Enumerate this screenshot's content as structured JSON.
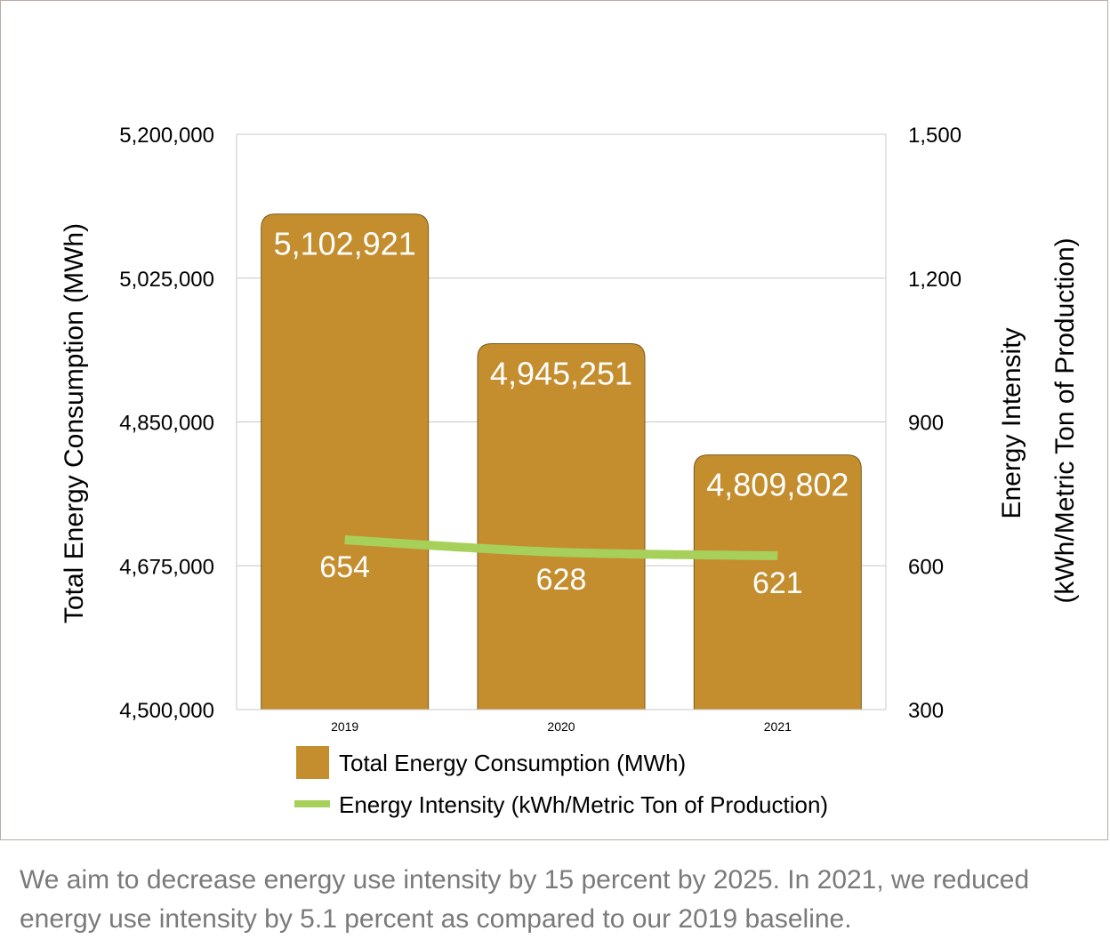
{
  "chart_data": {
    "type": "bar",
    "categories": [
      "2019",
      "2020",
      "2021"
    ],
    "series": [
      {
        "name": "Total Energy Consumption (MWh)",
        "type": "bar",
        "axis": "left",
        "values": [
          5102921,
          4945251,
          4809802
        ],
        "labels": [
          "5,102,921",
          "4,945,251",
          "4,809,802"
        ],
        "color": "#c48e2f"
      },
      {
        "name": "Energy Intensity (kWh/Metric Ton of Production)",
        "type": "line",
        "axis": "right",
        "values": [
          654,
          628,
          621
        ],
        "labels": [
          "654",
          "628",
          "621"
        ],
        "color": "#a6d05a"
      }
    ],
    "ylabel": "Total Energy Consumption (MWh)",
    "ylim": [
      4500000,
      5200000
    ],
    "yticks": [
      "4,500,000",
      "4,675,000",
      "4,850,000",
      "5,025,000",
      "5,200,000"
    ],
    "y2label_line1": "Energy Intensity",
    "y2label_line2": "(kWh/Metric Ton of Production)",
    "y2lim": [
      300,
      1500
    ],
    "y2ticks": [
      "300",
      "600",
      "900",
      "1,200",
      "1,500"
    ],
    "grid": true,
    "legend": "bottom"
  },
  "caption": "We aim to decrease energy use intensity by 15 percent by 2025. In 2021, we reduced energy use intensity by 5.1 percent as compared to our 2019 baseline."
}
